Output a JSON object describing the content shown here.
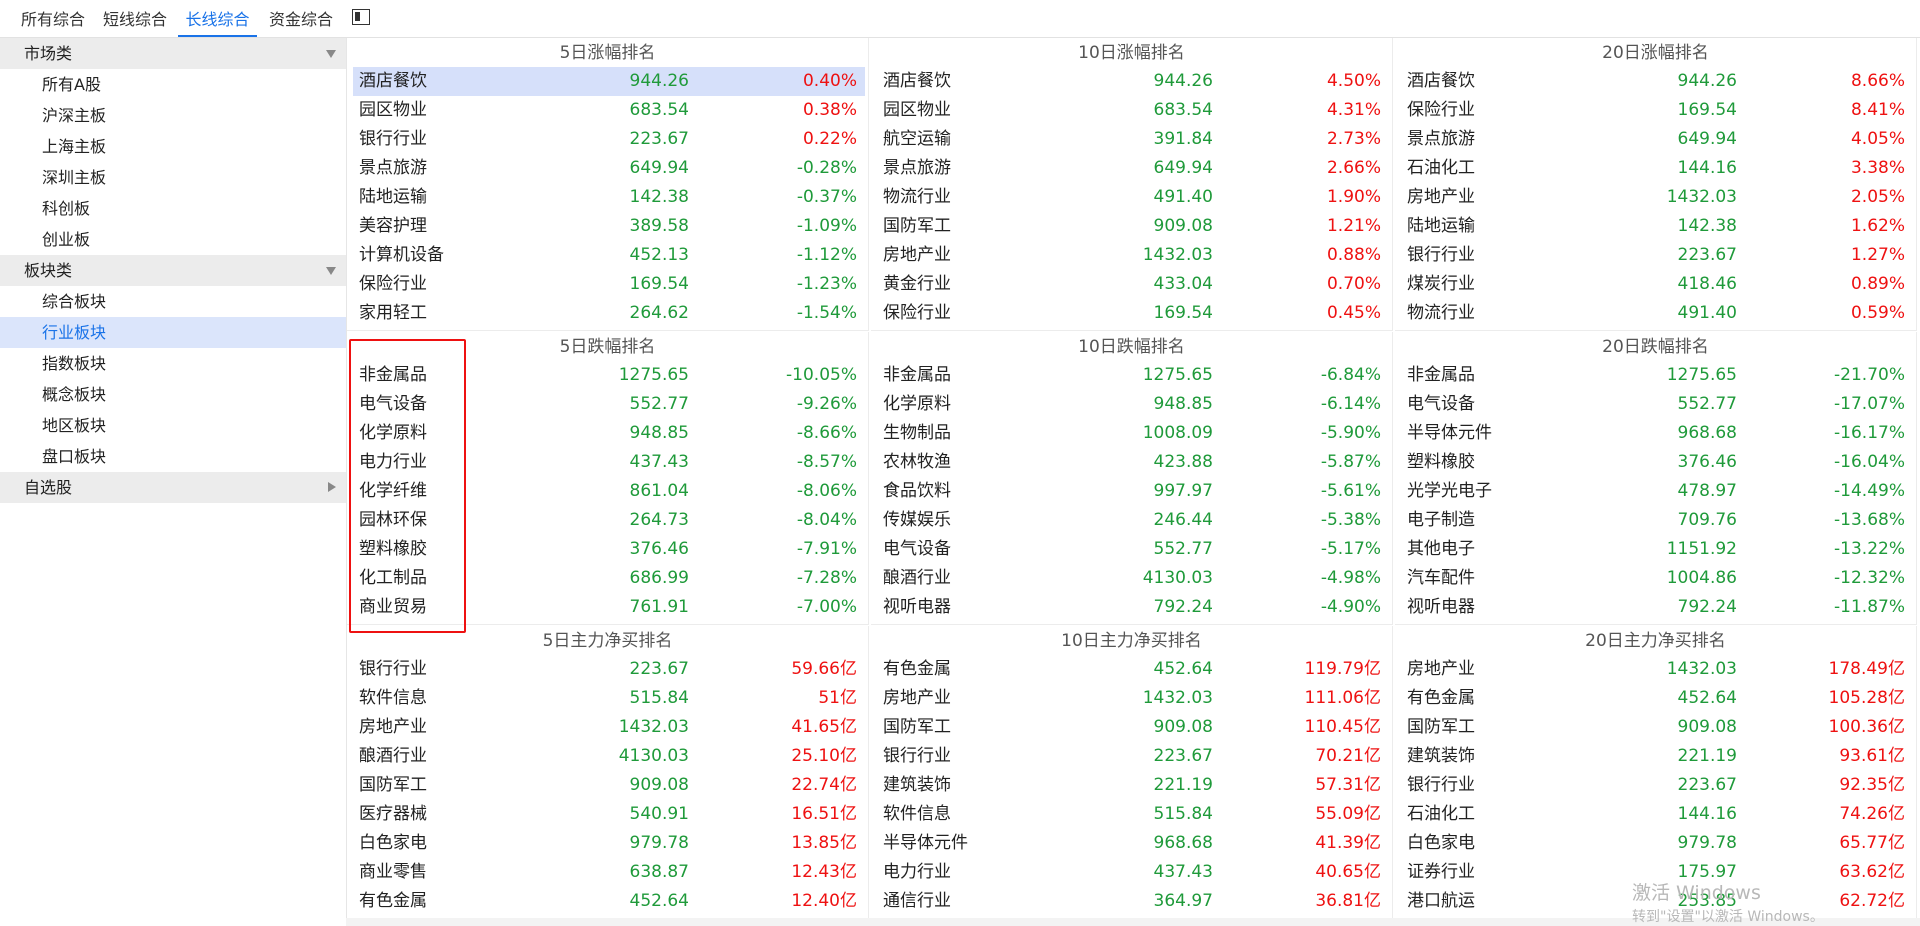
{
  "tabs": [
    {
      "label": "所有综合",
      "active": false
    },
    {
      "label": "短线综合",
      "active": false
    },
    {
      "label": "长线综合",
      "active": true
    },
    {
      "label": "资金综合",
      "active": false
    }
  ],
  "icons": {
    "layout_toggle": "sidebar-toggle-icon"
  },
  "sidebar": {
    "groups": [
      {
        "label": "市场类",
        "expanded": true,
        "items": [
          "所有A股",
          "沪深主板",
          "上海主板",
          "深圳主板",
          "科创板",
          "创业板"
        ]
      },
      {
        "label": "板块类",
        "expanded": true,
        "items": [
          "综合板块",
          "行业板块",
          "指数板块",
          "概念板块",
          "地区板块",
          "盘口板块"
        ],
        "selected": "行业板块"
      },
      {
        "label": "自选股",
        "expanded": false,
        "items": []
      }
    ]
  },
  "panels": [
    {
      "title": "5日涨幅排名",
      "rows": [
        {
          "name": "酒店餐饮",
          "price": "944.26",
          "change": "0.40%",
          "dir": "pos",
          "highlight": true
        },
        {
          "name": "园区物业",
          "price": "683.54",
          "change": "0.38%",
          "dir": "pos"
        },
        {
          "name": "银行行业",
          "price": "223.67",
          "change": "0.22%",
          "dir": "pos"
        },
        {
          "name": "景点旅游",
          "price": "649.94",
          "change": "-0.28%",
          "dir": "neg"
        },
        {
          "name": "陆地运输",
          "price": "142.38",
          "change": "-0.37%",
          "dir": "neg"
        },
        {
          "name": "美容护理",
          "price": "389.58",
          "change": "-1.09%",
          "dir": "neg"
        },
        {
          "name": "计算机设备",
          "price": "452.13",
          "change": "-1.12%",
          "dir": "neg"
        },
        {
          "name": "保险行业",
          "price": "169.54",
          "change": "-1.23%",
          "dir": "neg"
        },
        {
          "name": "家用轻工",
          "price": "264.62",
          "change": "-1.54%",
          "dir": "neg"
        }
      ]
    },
    {
      "title": "10日涨幅排名",
      "rows": [
        {
          "name": "酒店餐饮",
          "price": "944.26",
          "change": "4.50%",
          "dir": "pos"
        },
        {
          "name": "园区物业",
          "price": "683.54",
          "change": "4.31%",
          "dir": "pos"
        },
        {
          "name": "航空运输",
          "price": "391.84",
          "change": "2.73%",
          "dir": "pos"
        },
        {
          "name": "景点旅游",
          "price": "649.94",
          "change": "2.66%",
          "dir": "pos"
        },
        {
          "name": "物流行业",
          "price": "491.40",
          "change": "1.90%",
          "dir": "pos"
        },
        {
          "name": "国防军工",
          "price": "909.08",
          "change": "1.21%",
          "dir": "pos"
        },
        {
          "name": "房地产业",
          "price": "1432.03",
          "change": "0.88%",
          "dir": "pos"
        },
        {
          "name": "黄金行业",
          "price": "433.04",
          "change": "0.70%",
          "dir": "pos"
        },
        {
          "name": "保险行业",
          "price": "169.54",
          "change": "0.45%",
          "dir": "pos"
        }
      ]
    },
    {
      "title": "20日涨幅排名",
      "rows": [
        {
          "name": "酒店餐饮",
          "price": "944.26",
          "change": "8.66%",
          "dir": "pos"
        },
        {
          "name": "保险行业",
          "price": "169.54",
          "change": "8.41%",
          "dir": "pos"
        },
        {
          "name": "景点旅游",
          "price": "649.94",
          "change": "4.05%",
          "dir": "pos"
        },
        {
          "name": "石油化工",
          "price": "144.16",
          "change": "3.38%",
          "dir": "pos"
        },
        {
          "name": "房地产业",
          "price": "1432.03",
          "change": "2.05%",
          "dir": "pos"
        },
        {
          "name": "陆地运输",
          "price": "142.38",
          "change": "1.62%",
          "dir": "pos"
        },
        {
          "name": "银行行业",
          "price": "223.67",
          "change": "1.27%",
          "dir": "pos"
        },
        {
          "name": "煤炭行业",
          "price": "418.46",
          "change": "0.89%",
          "dir": "pos"
        },
        {
          "name": "物流行业",
          "price": "491.40",
          "change": "0.59%",
          "dir": "pos"
        }
      ]
    },
    {
      "title": "5日跌幅排名",
      "rows": [
        {
          "name": "非金属品",
          "price": "1275.65",
          "change": "-10.05%",
          "dir": "neg"
        },
        {
          "name": "电气设备",
          "price": "552.77",
          "change": "-9.26%",
          "dir": "neg"
        },
        {
          "name": "化学原料",
          "price": "948.85",
          "change": "-8.66%",
          "dir": "neg"
        },
        {
          "name": "电力行业",
          "price": "437.43",
          "change": "-8.57%",
          "dir": "neg"
        },
        {
          "name": "化学纤维",
          "price": "861.04",
          "change": "-8.06%",
          "dir": "neg"
        },
        {
          "name": "园林环保",
          "price": "264.73",
          "change": "-8.04%",
          "dir": "neg"
        },
        {
          "name": "塑料橡胶",
          "price": "376.46",
          "change": "-7.91%",
          "dir": "neg"
        },
        {
          "name": "化工制品",
          "price": "686.99",
          "change": "-7.28%",
          "dir": "neg"
        },
        {
          "name": "商业贸易",
          "price": "761.91",
          "change": "-7.00%",
          "dir": "neg"
        }
      ]
    },
    {
      "title": "10日跌幅排名",
      "rows": [
        {
          "name": "非金属品",
          "price": "1275.65",
          "change": "-6.84%",
          "dir": "neg"
        },
        {
          "name": "化学原料",
          "price": "948.85",
          "change": "-6.14%",
          "dir": "neg"
        },
        {
          "name": "生物制品",
          "price": "1008.09",
          "change": "-5.90%",
          "dir": "neg"
        },
        {
          "name": "农林牧渔",
          "price": "423.88",
          "change": "-5.87%",
          "dir": "neg"
        },
        {
          "name": "食品饮料",
          "price": "997.97",
          "change": "-5.61%",
          "dir": "neg"
        },
        {
          "name": "传媒娱乐",
          "price": "246.44",
          "change": "-5.38%",
          "dir": "neg"
        },
        {
          "name": "电气设备",
          "price": "552.77",
          "change": "-5.17%",
          "dir": "neg"
        },
        {
          "name": "酿酒行业",
          "price": "4130.03",
          "change": "-4.98%",
          "dir": "neg"
        },
        {
          "name": "视听电器",
          "price": "792.24",
          "change": "-4.90%",
          "dir": "neg"
        }
      ]
    },
    {
      "title": "20日跌幅排名",
      "rows": [
        {
          "name": "非金属品",
          "price": "1275.65",
          "change": "-21.70%",
          "dir": "neg"
        },
        {
          "name": "电气设备",
          "price": "552.77",
          "change": "-17.07%",
          "dir": "neg"
        },
        {
          "name": "半导体元件",
          "price": "968.68",
          "change": "-16.17%",
          "dir": "neg"
        },
        {
          "name": "塑料橡胶",
          "price": "376.46",
          "change": "-16.04%",
          "dir": "neg"
        },
        {
          "name": "光学光电子",
          "price": "478.97",
          "change": "-14.49%",
          "dir": "neg"
        },
        {
          "name": "电子制造",
          "price": "709.76",
          "change": "-13.68%",
          "dir": "neg"
        },
        {
          "name": "其他电子",
          "price": "1151.92",
          "change": "-13.22%",
          "dir": "neg"
        },
        {
          "name": "汽车配件",
          "price": "1004.86",
          "change": "-12.32%",
          "dir": "neg"
        },
        {
          "name": "视听电器",
          "price": "792.24",
          "change": "-11.87%",
          "dir": "neg"
        }
      ]
    },
    {
      "title": "5日主力净买排名",
      "rows": [
        {
          "name": "银行行业",
          "price": "223.67",
          "change": "59.66亿",
          "dir": "pos"
        },
        {
          "name": "软件信息",
          "price": "515.84",
          "change": "51亿",
          "dir": "pos"
        },
        {
          "name": "房地产业",
          "price": "1432.03",
          "change": "41.65亿",
          "dir": "pos"
        },
        {
          "name": "酿酒行业",
          "price": "4130.03",
          "change": "25.10亿",
          "dir": "pos"
        },
        {
          "name": "国防军工",
          "price": "909.08",
          "change": "22.74亿",
          "dir": "pos"
        },
        {
          "name": "医疗器械",
          "price": "540.91",
          "change": "16.51亿",
          "dir": "pos"
        },
        {
          "name": "白色家电",
          "price": "979.78",
          "change": "13.85亿",
          "dir": "pos"
        },
        {
          "name": "商业零售",
          "price": "638.87",
          "change": "12.43亿",
          "dir": "pos"
        },
        {
          "name": "有色金属",
          "price": "452.64",
          "change": "12.40亿",
          "dir": "pos"
        }
      ]
    },
    {
      "title": "10日主力净买排名",
      "rows": [
        {
          "name": "有色金属",
          "price": "452.64",
          "change": "119.79亿",
          "dir": "pos"
        },
        {
          "name": "房地产业",
          "price": "1432.03",
          "change": "111.06亿",
          "dir": "pos"
        },
        {
          "name": "国防军工",
          "price": "909.08",
          "change": "110.45亿",
          "dir": "pos"
        },
        {
          "name": "银行行业",
          "price": "223.67",
          "change": "70.21亿",
          "dir": "pos"
        },
        {
          "name": "建筑装饰",
          "price": "221.19",
          "change": "57.31亿",
          "dir": "pos"
        },
        {
          "name": "软件信息",
          "price": "515.84",
          "change": "55.09亿",
          "dir": "pos"
        },
        {
          "name": "半导体元件",
          "price": "968.68",
          "change": "41.39亿",
          "dir": "pos"
        },
        {
          "name": "电力行业",
          "price": "437.43",
          "change": "40.65亿",
          "dir": "pos"
        },
        {
          "name": "通信行业",
          "price": "364.97",
          "change": "36.81亿",
          "dir": "pos"
        }
      ]
    },
    {
      "title": "20日主力净买排名",
      "rows": [
        {
          "name": "房地产业",
          "price": "1432.03",
          "change": "178.49亿",
          "dir": "pos"
        },
        {
          "name": "有色金属",
          "price": "452.64",
          "change": "105.28亿",
          "dir": "pos"
        },
        {
          "name": "国防军工",
          "price": "909.08",
          "change": "100.36亿",
          "dir": "pos"
        },
        {
          "name": "建筑装饰",
          "price": "221.19",
          "change": "93.61亿",
          "dir": "pos"
        },
        {
          "name": "银行行业",
          "price": "223.67",
          "change": "92.35亿",
          "dir": "pos"
        },
        {
          "name": "石油化工",
          "price": "144.16",
          "change": "74.26亿",
          "dir": "pos"
        },
        {
          "name": "白色家电",
          "price": "979.78",
          "change": "65.77亿",
          "dir": "pos"
        },
        {
          "name": "证券行业",
          "price": "175.97",
          "change": "63.62亿",
          "dir": "pos"
        },
        {
          "name": "港口航运",
          "price": "253.85",
          "change": "62.72亿",
          "dir": "pos"
        }
      ]
    }
  ],
  "watermark": {
    "line1": "激活 Windows",
    "line2": "转到\"设置\"以激活 Windows。"
  },
  "colors": {
    "up": "#ee1111",
    "down": "#1f9a3a",
    "accent": "#1a73e8",
    "highlight_row": "#d6e0fa",
    "annotation_box": "#ee1111"
  }
}
